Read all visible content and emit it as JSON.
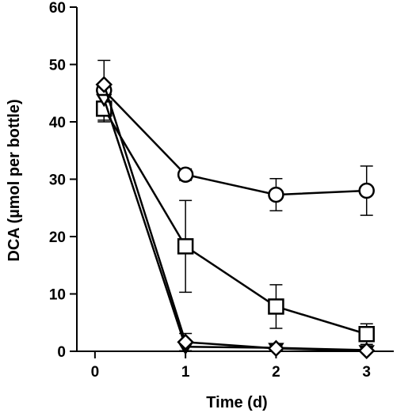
{
  "chart_data": {
    "type": "line",
    "title": "",
    "xlabel": "Time (d)",
    "ylabel": "DCA (µmol per bottle)",
    "xlim": [
      -0.2,
      3.3
    ],
    "ylim": [
      0,
      60
    ],
    "xticks": [
      0,
      1,
      2,
      3
    ],
    "yticks": [
      0,
      10,
      20,
      30,
      40,
      50,
      60
    ],
    "grid": false,
    "legend": "none",
    "series": [
      {
        "marker": "circle",
        "x": [
          0.1,
          1,
          2,
          3
        ],
        "y": [
          45.5,
          30.8,
          27.3,
          28.0
        ],
        "err": [
          5.2,
          1.0,
          2.8,
          4.3
        ]
      },
      {
        "marker": "square",
        "x": [
          0.1,
          1,
          2,
          3
        ],
        "y": [
          42.3,
          18.3,
          7.8,
          3.0
        ],
        "err": [
          2.3,
          8.0,
          3.8,
          1.8
        ]
      },
      {
        "marker": "triangle-down",
        "x": [
          0.1,
          1,
          2,
          3
        ],
        "y": [
          44.0,
          0.8,
          0.6,
          0.2
        ],
        "err": [
          0,
          0,
          0,
          0
        ]
      },
      {
        "marker": "diamond",
        "x": [
          0.1,
          1,
          2,
          3
        ],
        "y": [
          46.5,
          1.6,
          0.5,
          0.1
        ],
        "err": [
          0,
          1.5,
          0,
          0
        ]
      }
    ]
  }
}
